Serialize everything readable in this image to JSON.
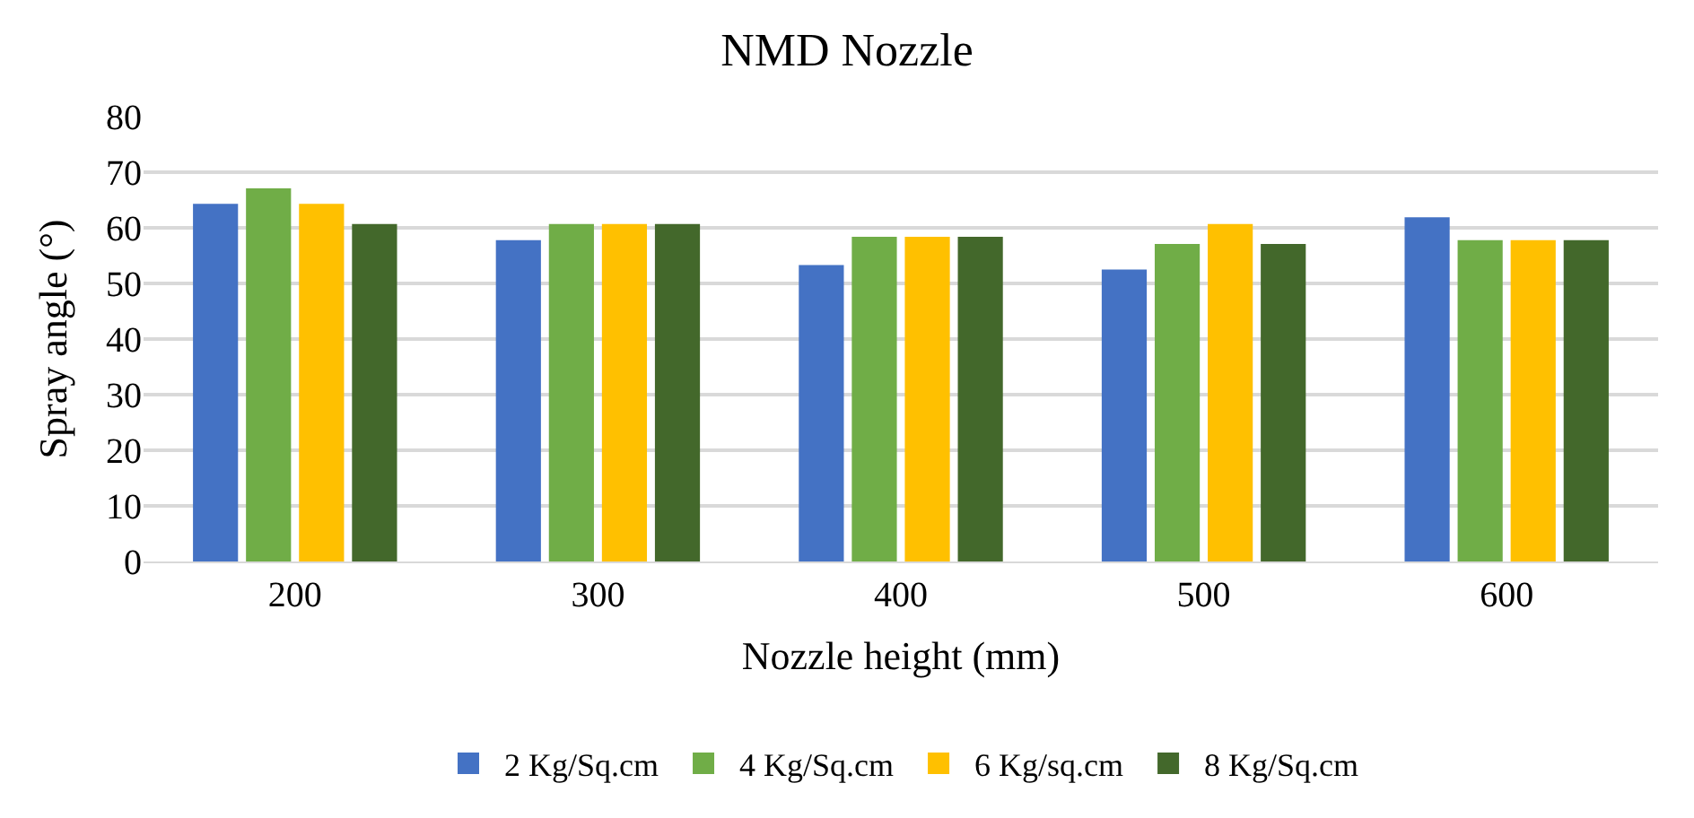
{
  "chart_data": {
    "type": "bar",
    "title": "NMD Nozzle",
    "xlabel": "Nozzle height (mm)",
    "ylabel": "Spray angle (°)",
    "categories": [
      "200",
      "300",
      "400",
      "500",
      "600"
    ],
    "series": [
      {
        "name": "2 Kg/Sq.cm",
        "color": "#4472c4",
        "values": [
          64.3,
          57.8,
          53.3,
          52.5,
          61.9
        ]
      },
      {
        "name": "4 Kg/Sq.cm",
        "color": "#70ad47",
        "values": [
          67.1,
          60.7,
          58.4,
          57.1,
          57.8
        ]
      },
      {
        "name": "6 Kg/sq.cm",
        "color": "#ffc000",
        "values": [
          64.3,
          60.7,
          58.4,
          60.7,
          57.8
        ]
      },
      {
        "name": "8 Kg/Sq.cm",
        "color": "#43682b",
        "values": [
          60.7,
          60.7,
          58.4,
          57.1,
          57.8
        ]
      }
    ],
    "ylim": [
      0,
      80
    ],
    "yticks": [
      0,
      10,
      20,
      30,
      40,
      50,
      60,
      70,
      80
    ],
    "grid": "y",
    "legend": "bottom"
  }
}
